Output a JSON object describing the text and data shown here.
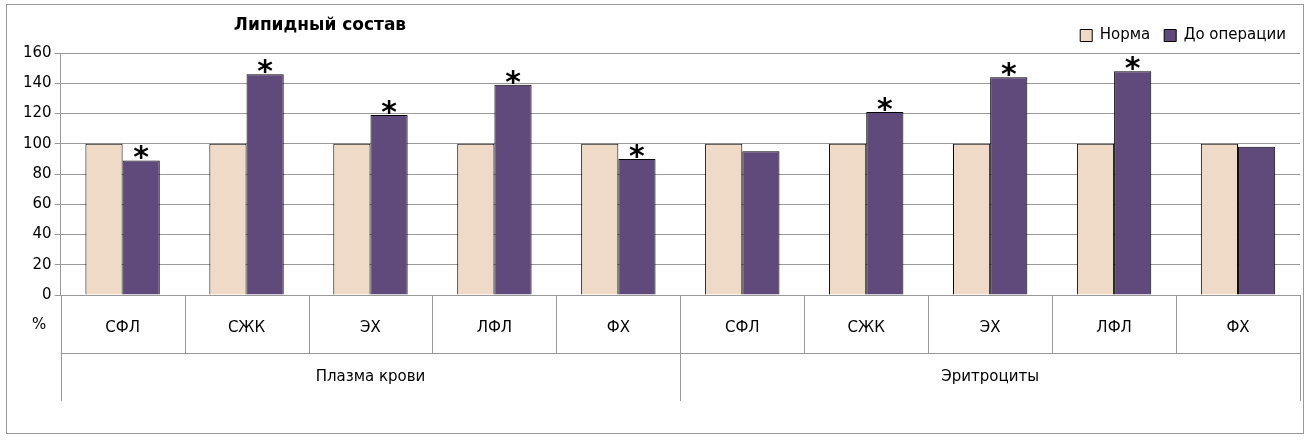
{
  "chart_data": {
    "type": "bar",
    "title": "Липидный состав",
    "ylabel": "%",
    "categories": [
      "СФЛ",
      "СЖК",
      "ЭХ",
      "ЛФЛ",
      "ФХ",
      "СФЛ",
      "СЖК",
      "ЭХ",
      "ЛФЛ",
      "ФХ"
    ],
    "series": [
      {
        "name": "Норма",
        "color": "#eedac6",
        "values": [
          100,
          100,
          100,
          100,
          100,
          100,
          100,
          100,
          100,
          100
        ]
      },
      {
        "name": "До операции",
        "color": "#604a7b",
        "values": [
          89,
          146,
          119,
          139,
          90,
          95,
          121,
          144,
          148,
          98
        ],
        "value_labels": [
          "*",
          "*",
          "*",
          "*",
          "*",
          null,
          "*",
          "*",
          "*",
          null
        ]
      }
    ],
    "annotations": [
      "Плазма крови",
      "Эритроциты"
    ],
    "ylim": [
      0,
      160
    ],
    "yticks": [
      0,
      20,
      40,
      60,
      80,
      100,
      120,
      140,
      160
    ],
    "grid": "y",
    "legend": "top right"
  }
}
